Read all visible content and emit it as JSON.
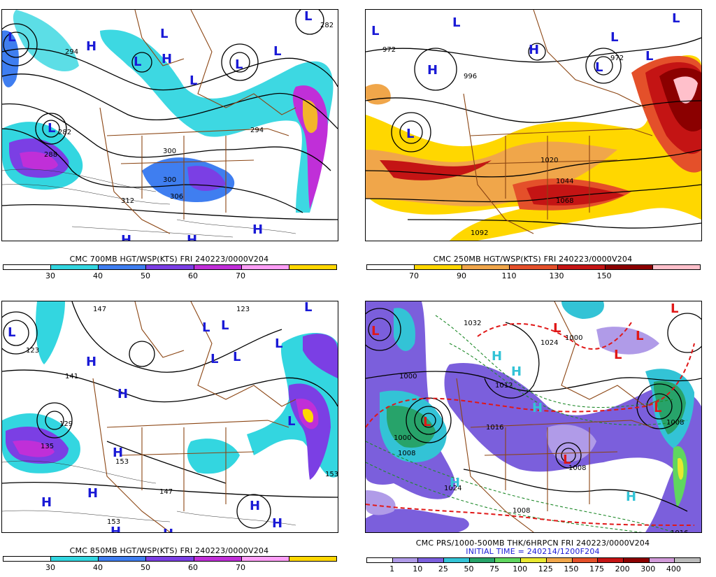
{
  "panels": [
    {
      "id": "p700",
      "caption": "CMC 700MB HGT/WSP(KTS) FRI 240223/0000V204",
      "legend_colors": [
        "#ffffff",
        "#33d6e0",
        "#3f7ef0",
        "#7b3fe4",
        "#c02fd8",
        "#ff9ff7",
        "#ffd700"
      ],
      "legend_ticks": [
        "30",
        "40",
        "50",
        "60",
        "70"
      ],
      "labels": [
        "294",
        "282",
        "288",
        "300",
        "306",
        "312",
        "300",
        "294",
        "282"
      ],
      "markers": [
        "L",
        "L",
        "H",
        "H",
        "L",
        "L",
        "L",
        "L",
        "L",
        "L",
        "H",
        "H",
        "H"
      ]
    },
    {
      "id": "p250",
      "caption": "CMC 250MB HGT/WSP(KTS) FRI 240223/0000V204",
      "legend_colors": [
        "#ffffff",
        "#ffd700",
        "#f0a64a",
        "#e4502a",
        "#c41414",
        "#8b0000",
        "#ffc0cb"
      ],
      "legend_ticks": [
        "70",
        "90",
        "110",
        "130",
        "150"
      ],
      "labels": [
        "972",
        "996",
        "972",
        "1020",
        "1044",
        "1068",
        "1092"
      ],
      "markers": [
        "L",
        "L",
        "L",
        "H",
        "L",
        "L",
        "L",
        "L",
        "H"
      ]
    },
    {
      "id": "p850",
      "caption": "CMC 850MB HGT/WSP(KTS) FRI 240223/0000V204",
      "legend_colors": [
        "#ffffff",
        "#33d6e0",
        "#3f7ef0",
        "#7b3fe4",
        "#c02fd8",
        "#ff9ff7",
        "#ffd700"
      ],
      "legend_ticks": [
        "30",
        "40",
        "50",
        "60",
        "70"
      ],
      "labels": [
        "147",
        "123",
        "141",
        "129",
        "135",
        "153",
        "147",
        "153",
        "153",
        "123"
      ],
      "markers": [
        "L",
        "H",
        "H",
        "H",
        "L",
        "L",
        "L",
        "L",
        "L",
        "L",
        "H",
        "H",
        "H",
        "H",
        "H",
        "H",
        "L"
      ]
    },
    {
      "id": "pprs",
      "caption": "CMC PRS/1000-500MB THK/6HRPCN FRI 240223/0000V204",
      "caption2": "INITIAL TIME = 240214/1200F204",
      "legend_colors": [
        "#ffffff",
        "#b09be8",
        "#7b5fdc",
        "#33c3d6",
        "#27a36a",
        "#5fd65f",
        "#e8e830",
        "#f0a64a",
        "#e4502a",
        "#c41414",
        "#8b0000",
        "#d09ad8",
        "#bbbbbb"
      ],
      "legend_ticks": [
        "1",
        "10",
        "25",
        "50",
        "75",
        "100",
        "125",
        "150",
        "175",
        "200",
        "300",
        "400"
      ],
      "labels": [
        "1032",
        "1000",
        "1024",
        "1016",
        "1008",
        "1012",
        "1000",
        "1008",
        "1024",
        "1008",
        "1008",
        "1016",
        "1000"
      ],
      "markers": [
        "L",
        "L",
        "H",
        "H",
        "H",
        "L",
        "L",
        "L",
        "L",
        "H",
        "H",
        "H",
        "L",
        "L"
      ]
    }
  ]
}
